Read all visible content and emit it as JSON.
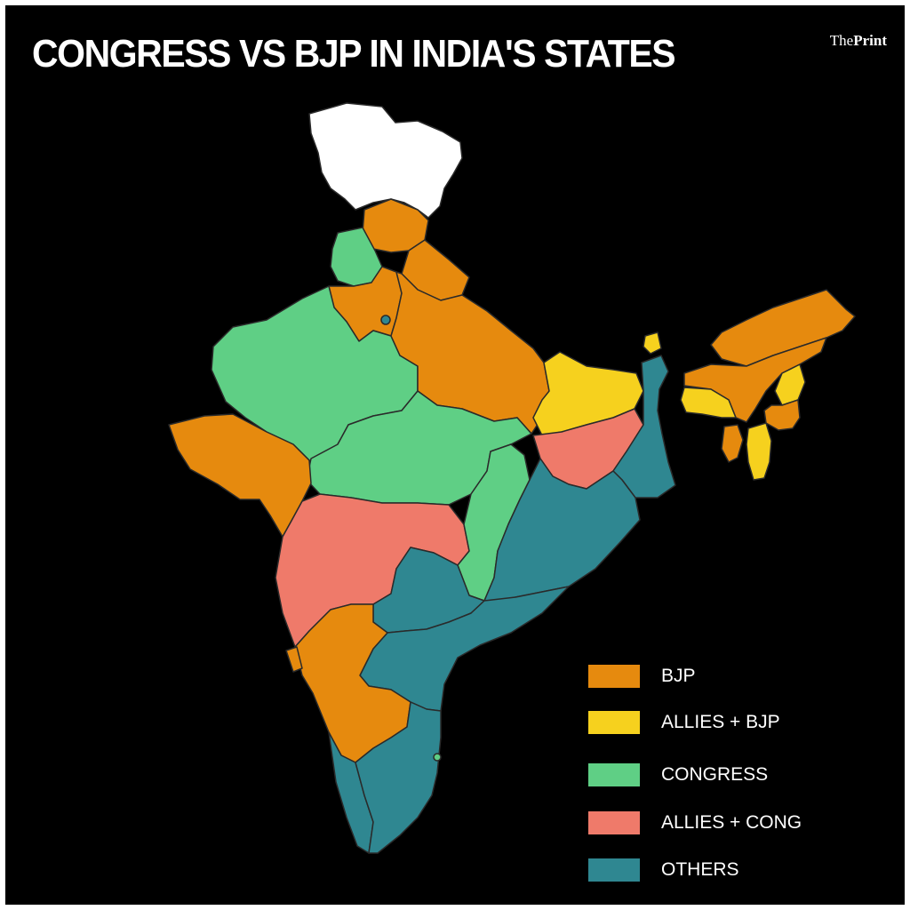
{
  "title": "CONGRESS VS BJP IN INDIA'S STATES",
  "brand": {
    "prefix": "The",
    "name": "Print"
  },
  "legend": {
    "bjp": "BJP",
    "allies_bjp": "ALLIES + BJP",
    "congress": "CONGRESS",
    "allies_cong": "ALLIES + CONG",
    "others": "OTHERS"
  },
  "colors": {
    "background": "#000000",
    "bjp": "#E68A0E",
    "allies_bjp": "#F6D11E",
    "congress": "#5FCF85",
    "allies_cong": "#EF7A6A",
    "others": "#2F8791",
    "others_none": "#FFFFFF",
    "border": "#2A2A2A"
  }
}
